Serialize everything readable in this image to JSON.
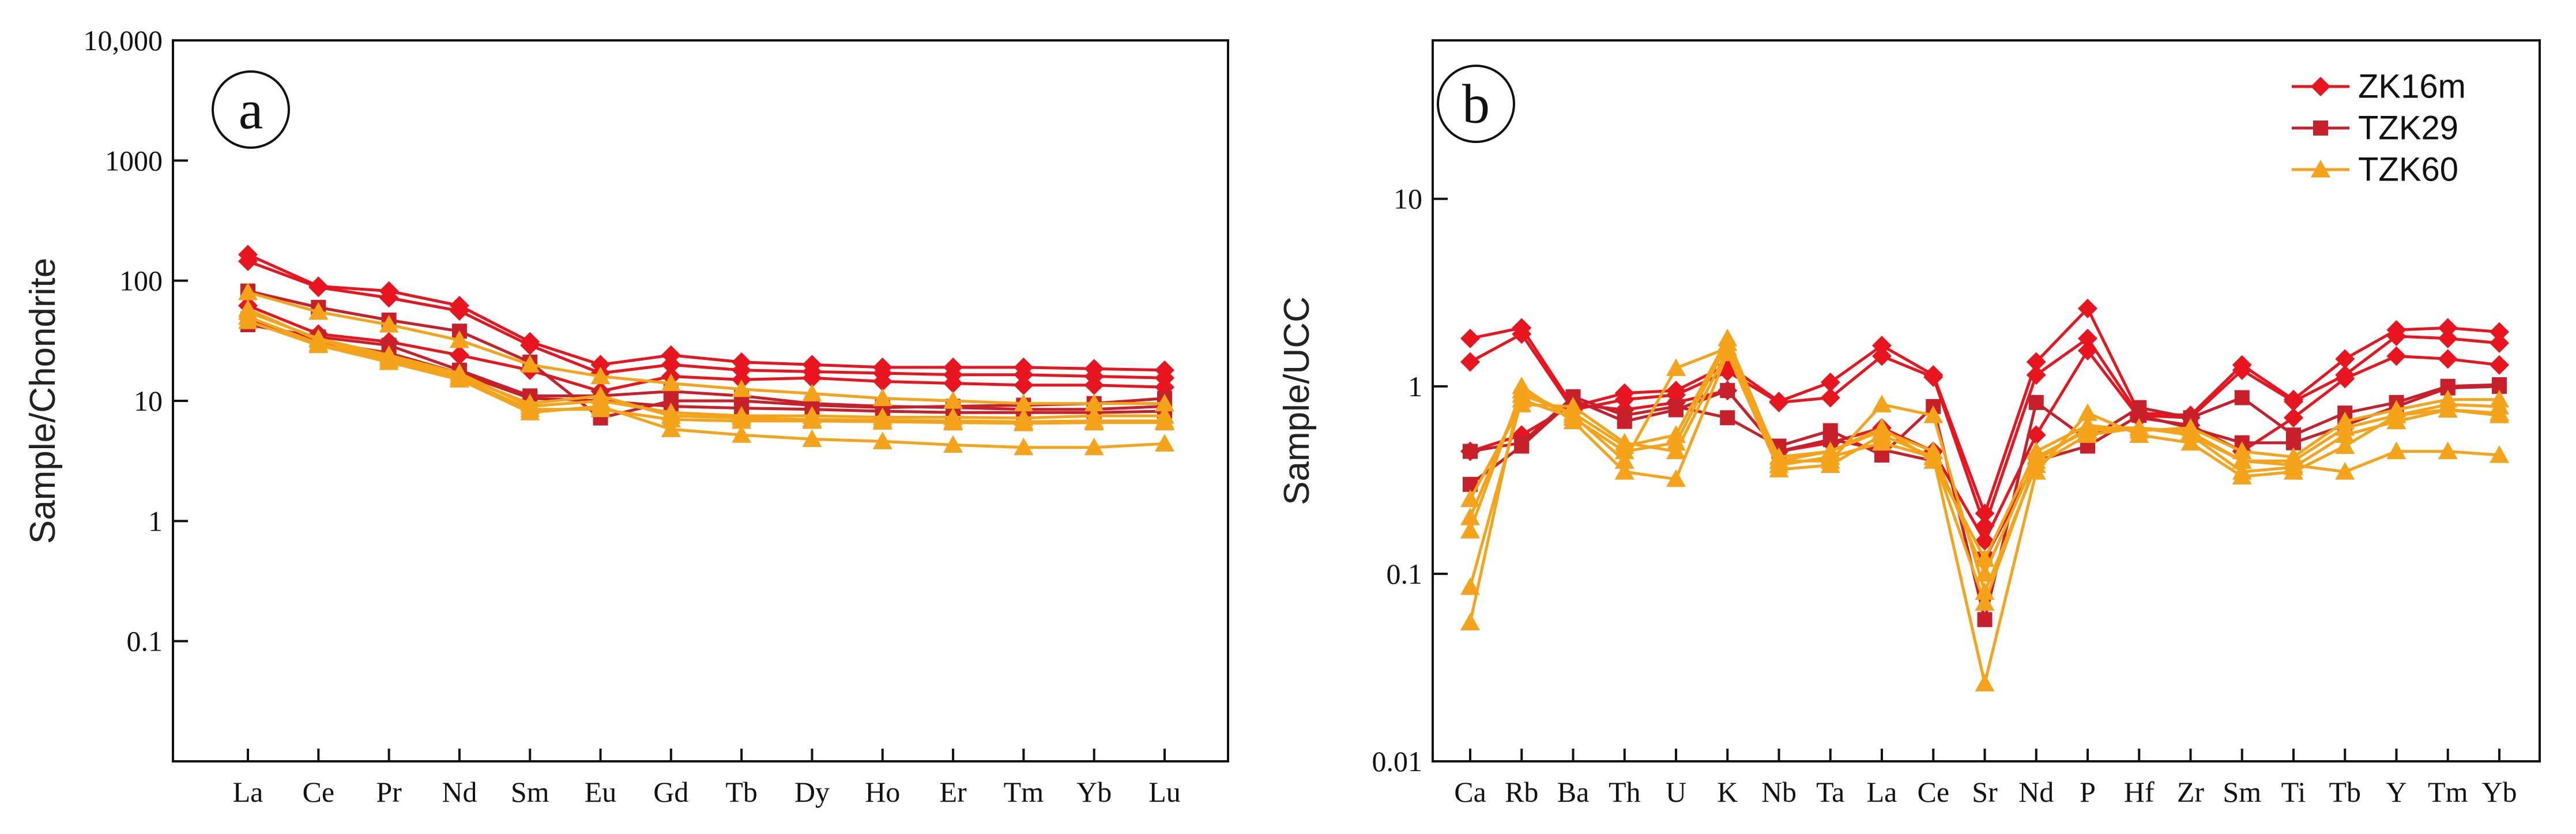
{
  "colors": {
    "ZK16m": "#e8141e",
    "TZK29": "#c8202a",
    "TZK60": "#f5a31a"
  },
  "legend": [
    {
      "name": "ZK16m",
      "marker": "diamond",
      "color": "#e8141e"
    },
    {
      "name": "TZK29",
      "marker": "square",
      "color": "#c8202a"
    },
    {
      "name": "TZK60",
      "marker": "triangle",
      "color": "#f5a31a"
    }
  ],
  "chart_data": [
    {
      "type": "line",
      "panel": "a",
      "yscale": "log",
      "ylabel": "Sample/Chondrite",
      "ylim": [
        0.01,
        10000
      ],
      "yticks": [
        {
          "value": 0.1,
          "label": "0.1"
        },
        {
          "value": 1,
          "label": "1"
        },
        {
          "value": 10,
          "label": "10"
        },
        {
          "value": 100,
          "label": "100"
        },
        {
          "value": 1000,
          "label": "1000"
        },
        {
          "value": 10000,
          "label": "10,000"
        }
      ],
      "categories": [
        "La",
        "Ce",
        "Pr",
        "Nd",
        "Sm",
        "Eu",
        "Gd",
        "Tb",
        "Dy",
        "Ho",
        "Er",
        "Tm",
        "Yb",
        "Lu"
      ],
      "series": [
        {
          "name": "ZK16m",
          "marker": "diamond",
          "values": [
            165,
            90,
            82,
            62,
            31,
            20,
            24,
            21,
            20,
            19,
            19,
            19,
            18.5,
            18
          ]
        },
        {
          "name": "ZK16m",
          "marker": "diamond",
          "values": [
            145,
            88,
            72,
            56,
            29,
            17,
            20,
            18,
            17.5,
            17,
            16.5,
            16.5,
            16,
            15.5
          ]
        },
        {
          "name": "ZK16m",
          "marker": "diamond",
          "values": [
            62,
            36,
            31,
            24,
            18,
            12,
            16,
            15,
            15.5,
            14.5,
            14,
            13.5,
            13.5,
            13
          ]
        },
        {
          "name": "TZK29",
          "marker": "square",
          "values": [
            82,
            60,
            47,
            38,
            21,
            7.2,
            10,
            10,
            9.2,
            8.8,
            9,
            9.2,
            9.5,
            10.5
          ]
        },
        {
          "name": "TZK29",
          "marker": "square",
          "values": [
            43,
            34,
            29,
            18,
            11,
            11,
            12,
            11,
            9.5,
            9,
            8.8,
            8.5,
            8.5,
            9
          ]
        },
        {
          "name": "TZK29",
          "marker": "square",
          "values": [
            48,
            31,
            25,
            17,
            10.5,
            10,
            9,
            8.7,
            8.5,
            8.2,
            8,
            8,
            8,
            8.2
          ]
        },
        {
          "name": "TZK60",
          "marker": "triangle",
          "values": [
            80,
            55,
            43,
            32,
            20,
            16,
            14,
            12.5,
            11.5,
            10.5,
            10,
            9.5,
            9.5,
            9.5
          ]
        },
        {
          "name": "TZK60",
          "marker": "triangle",
          "values": [
            55,
            33,
            24,
            17,
            9,
            10,
            8,
            7.5,
            7.5,
            7.3,
            7.3,
            7.2,
            7.5,
            7.5
          ]
        },
        {
          "name": "TZK60",
          "marker": "triangle",
          "values": [
            50,
            30,
            22,
            15.5,
            8.5,
            8.5,
            7,
            6.8,
            6.8,
            6.7,
            6.6,
            6.5,
            6.6,
            6.6
          ]
        },
        {
          "name": "TZK60",
          "marker": "triangle",
          "values": [
            46,
            29,
            21,
            15,
            8,
            9,
            5.8,
            5.2,
            4.8,
            4.6,
            4.3,
            4.1,
            4.1,
            4.4
          ]
        },
        {
          "name": "TZK60",
          "marker": "triangle",
          "values": [
            58,
            32,
            23,
            16,
            9.5,
            11,
            7.5,
            7.2,
            7,
            6.9,
            6.8,
            6.7,
            6.8,
            6.8
          ]
        }
      ]
    },
    {
      "type": "line",
      "panel": "b",
      "yscale": "log",
      "ylabel": "Sample/UCC",
      "ylim": [
        0.01,
        70
      ],
      "yticks": [
        {
          "value": 0.01,
          "label": "0.01"
        },
        {
          "value": 0.1,
          "label": "0.1"
        },
        {
          "value": 1,
          "label": "1"
        },
        {
          "value": 10,
          "label": "10"
        }
      ],
      "categories": [
        "Ca",
        "Rb",
        "Ba",
        "Th",
        "U",
        "K",
        "Nb",
        "Ta",
        "La",
        "Ce",
        "Sr",
        "Nd",
        "P",
        "Hf",
        "Zr",
        "Sm",
        "Ti",
        "Tb",
        "Y",
        "Tm",
        "Yb"
      ],
      "series": [
        {
          "name": "ZK16m",
          "marker": "diamond",
          "values": [
            1.8,
            2.05,
            0.78,
            0.92,
            0.95,
            1.3,
            0.83,
            1.05,
            1.65,
            1.15,
            0.21,
            1.35,
            2.6,
            0.72,
            0.7,
            1.3,
            0.85,
            1.4,
            2.0,
            2.05,
            1.95
          ]
        },
        {
          "name": "ZK16m",
          "marker": "diamond",
          "values": [
            1.35,
            1.9,
            0.75,
            0.85,
            0.9,
            1.2,
            0.82,
            0.87,
            1.45,
            1.12,
            0.18,
            1.15,
            1.8,
            0.7,
            0.68,
            1.22,
            0.83,
            1.15,
            1.85,
            1.8,
            1.7
          ]
        },
        {
          "name": "ZK16m",
          "marker": "diamond",
          "values": [
            0.45,
            0.55,
            0.8,
            0.75,
            0.82,
            0.95,
            0.45,
            0.5,
            0.6,
            0.45,
            0.15,
            0.55,
            1.55,
            0.68,
            0.62,
            0.45,
            0.68,
            1.1,
            1.45,
            1.4,
            1.3
          ]
        },
        {
          "name": "TZK29",
          "marker": "square",
          "values": [
            0.45,
            0.5,
            0.88,
            0.7,
            0.78,
            0.68,
            0.48,
            0.58,
            0.43,
            0.78,
            0.057,
            0.82,
            0.52,
            0.77,
            0.68,
            0.87,
            0.55,
            0.72,
            0.82,
            1.0,
            1.02
          ]
        },
        {
          "name": "TZK29",
          "marker": "square",
          "values": [
            0.3,
            0.48,
            0.85,
            0.65,
            0.75,
            0.95,
            0.45,
            0.52,
            0.46,
            0.4,
            0.12,
            0.4,
            0.48,
            0.7,
            0.6,
            0.5,
            0.5,
            0.62,
            0.78,
            0.98,
            1.0
          ]
        },
        {
          "name": "TZK60",
          "marker": "triangle",
          "values": [
            0.17,
            0.95,
            0.7,
            0.4,
            1.25,
            1.6,
            0.4,
            0.4,
            0.8,
            0.7,
            0.08,
            0.38,
            0.55,
            0.6,
            0.55,
            0.4,
            0.38,
            0.35,
            0.45,
            0.45,
            0.43
          ]
        },
        {
          "name": "TZK60",
          "marker": "triangle",
          "values": [
            0.055,
            1.0,
            0.65,
            0.35,
            0.32,
            1.5,
            0.36,
            0.38,
            0.55,
            0.42,
            0.026,
            0.35,
            0.72,
            0.55,
            0.5,
            0.33,
            0.35,
            0.48,
            0.7,
            0.75,
            0.72
          ]
        },
        {
          "name": "TZK60",
          "marker": "triangle",
          "values": [
            0.085,
            0.85,
            0.68,
            0.45,
            0.5,
            1.7,
            0.38,
            0.42,
            0.5,
            0.42,
            0.07,
            0.4,
            0.6,
            0.6,
            0.55,
            0.35,
            0.37,
            0.55,
            0.65,
            0.75,
            0.7
          ]
        },
        {
          "name": "TZK60",
          "marker": "triangle",
          "values": [
            0.2,
            0.9,
            0.72,
            0.48,
            0.55,
            1.8,
            0.4,
            0.45,
            0.58,
            0.45,
            0.1,
            0.42,
            0.58,
            0.6,
            0.57,
            0.4,
            0.4,
            0.6,
            0.7,
            0.8,
            0.78
          ]
        },
        {
          "name": "TZK60",
          "marker": "triangle",
          "values": [
            0.25,
            0.8,
            0.78,
            0.5,
            0.45,
            1.55,
            0.42,
            0.45,
            0.6,
            0.4,
            0.12,
            0.45,
            0.62,
            0.58,
            0.6,
            0.45,
            0.42,
            0.65,
            0.75,
            0.85,
            0.85
          ]
        }
      ]
    }
  ],
  "panels": {
    "a": {
      "letter": "a",
      "ylabel": "Sample/Chondrite"
    },
    "b": {
      "letter": "b",
      "ylabel": "Sample/UCC"
    }
  }
}
